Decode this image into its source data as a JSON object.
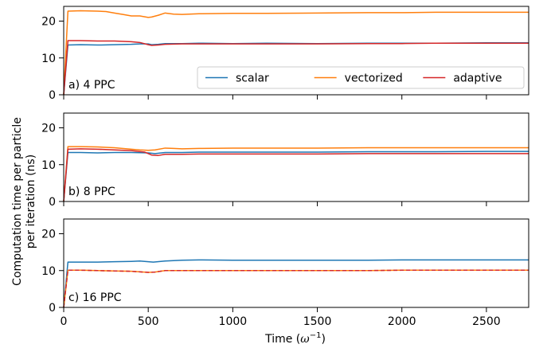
{
  "figure": {
    "ylabel_line1": "Computation time per particle",
    "ylabel_line2": "per iteration (ns)",
    "xlabel_main": "Time (",
    "xlabel_omega": "ω",
    "xlabel_exp": "−1",
    "xlabel_close": ")"
  },
  "chart_data": [
    {
      "type": "line",
      "panel_label": "a) 4 PPC",
      "xlim": [
        0,
        2750
      ],
      "ylim": [
        0,
        24
      ],
      "xticks": [
        0,
        500,
        1000,
        1500,
        2000,
        2500
      ],
      "yticks": [
        0,
        10,
        20
      ],
      "grid": false,
      "legend": {
        "placement": "lower-right",
        "columns": 3
      },
      "series": [
        {
          "name": "scalar",
          "color": "#1f77b4",
          "dashed": false,
          "x": [
            0,
            25,
            100,
            200,
            300,
            400,
            450,
            500,
            520,
            560,
            600,
            700,
            800,
            1000,
            1200,
            1500,
            1800,
            2000,
            2200,
            2500,
            2750
          ],
          "y": [
            0,
            13.5,
            13.6,
            13.5,
            13.6,
            13.7,
            13.8,
            13.8,
            13.6,
            13.7,
            13.9,
            13.9,
            14.0,
            13.9,
            14.0,
            13.9,
            14.0,
            14.0,
            14.0,
            14.1,
            14.1
          ]
        },
        {
          "name": "vectorized",
          "color": "#ff7f0e",
          "dashed": false,
          "x": [
            0,
            25,
            100,
            200,
            250,
            300,
            350,
            400,
            450,
            500,
            520,
            560,
            600,
            650,
            700,
            800,
            1000,
            1200,
            1500,
            1800,
            2000,
            2200,
            2500,
            2750
          ],
          "y": [
            0,
            22.7,
            22.8,
            22.7,
            22.6,
            22.2,
            21.8,
            21.4,
            21.4,
            21.0,
            21.1,
            21.6,
            22.2,
            21.9,
            21.8,
            22.0,
            22.1,
            22.1,
            22.2,
            22.3,
            22.3,
            22.4,
            22.4,
            22.4
          ]
        },
        {
          "name": "adaptive",
          "color": "#d62728",
          "dashed": false,
          "x": [
            0,
            25,
            100,
            200,
            300,
            400,
            450,
            500,
            520,
            560,
            600,
            700,
            800,
            1000,
            1200,
            1500,
            1800,
            2000,
            2200,
            2500,
            2750
          ],
          "y": [
            0,
            14.7,
            14.7,
            14.6,
            14.6,
            14.4,
            14.2,
            13.6,
            13.4,
            13.5,
            13.7,
            13.8,
            13.8,
            13.8,
            13.8,
            13.8,
            13.9,
            13.9,
            14.0,
            14.0,
            14.0
          ]
        }
      ]
    },
    {
      "type": "line",
      "panel_label": "b) 8 PPC",
      "xlim": [
        0,
        2750
      ],
      "ylim": [
        0,
        24
      ],
      "xticks": [
        0,
        500,
        1000,
        1500,
        2000,
        2500
      ],
      "yticks": [
        0,
        10,
        20
      ],
      "grid": false,
      "series": [
        {
          "name": "scalar",
          "color": "#1f77b4",
          "dashed": false,
          "x": [
            0,
            25,
            100,
            200,
            300,
            400,
            500,
            540,
            600,
            700,
            800,
            1000,
            1200,
            1500,
            1800,
            2000,
            2200,
            2500,
            2750
          ],
          "y": [
            0,
            13.3,
            13.3,
            13.2,
            13.3,
            13.3,
            13.2,
            13.0,
            13.3,
            13.3,
            13.4,
            13.4,
            13.4,
            13.4,
            13.5,
            13.5,
            13.5,
            13.6,
            13.6
          ]
        },
        {
          "name": "vectorized",
          "color": "#ff7f0e",
          "dashed": false,
          "x": [
            0,
            25,
            100,
            200,
            300,
            400,
            450,
            500,
            540,
            600,
            650,
            700,
            800,
            1000,
            1200,
            1500,
            1800,
            2000,
            2200,
            2500,
            2750
          ],
          "y": [
            0,
            14.9,
            14.9,
            14.8,
            14.6,
            14.2,
            14.0,
            13.9,
            14.0,
            14.5,
            14.4,
            14.3,
            14.4,
            14.5,
            14.5,
            14.5,
            14.6,
            14.6,
            14.6,
            14.6,
            14.6
          ]
        },
        {
          "name": "adaptive",
          "color": "#d62728",
          "dashed": false,
          "x": [
            0,
            25,
            100,
            200,
            300,
            400,
            480,
            520,
            560,
            600,
            700,
            800,
            1000,
            1200,
            1500,
            1800,
            2000,
            2200,
            2500,
            2750
          ],
          "y": [
            0,
            14.2,
            14.3,
            14.2,
            14.0,
            13.8,
            13.4,
            12.6,
            12.5,
            12.8,
            12.8,
            12.9,
            12.9,
            12.9,
            12.9,
            13.0,
            13.0,
            13.0,
            13.0,
            13.0
          ]
        }
      ]
    },
    {
      "type": "line",
      "panel_label": "c) 16 PPC",
      "xlim": [
        0,
        2750
      ],
      "ylim": [
        0,
        24
      ],
      "xticks": [
        0,
        500,
        1000,
        1500,
        2000,
        2500
      ],
      "yticks": [
        0,
        10,
        20
      ],
      "grid": false,
      "series": [
        {
          "name": "scalar",
          "color": "#1f77b4",
          "dashed": false,
          "x": [
            0,
            25,
            100,
            200,
            300,
            400,
            450,
            500,
            530,
            600,
            700,
            800,
            1000,
            1200,
            1500,
            1800,
            2000,
            2200,
            2500,
            2750
          ],
          "y": [
            0,
            12.3,
            12.3,
            12.3,
            12.4,
            12.5,
            12.6,
            12.4,
            12.3,
            12.6,
            12.8,
            12.9,
            12.8,
            12.8,
            12.8,
            12.8,
            12.9,
            12.9,
            12.9,
            12.9
          ]
        },
        {
          "name": "vectorized",
          "color": "#ff7f0e",
          "dashed": false,
          "x": [
            0,
            25,
            100,
            200,
            300,
            400,
            500,
            540,
            600,
            700,
            800,
            1000,
            1200,
            1500,
            1800,
            2000,
            2200,
            2500,
            2750
          ],
          "y": [
            0,
            10.1,
            10.1,
            10.0,
            9.9,
            9.8,
            9.5,
            9.6,
            10.0,
            10.0,
            10.0,
            10.0,
            10.0,
            10.0,
            10.0,
            10.1,
            10.1,
            10.1,
            10.1
          ]
        },
        {
          "name": "adaptive",
          "color": "#d62728",
          "dashed": true,
          "x": [
            0,
            25,
            100,
            200,
            300,
            400,
            500,
            540,
            600,
            700,
            800,
            1000,
            1200,
            1500,
            1800,
            2000,
            2200,
            2500,
            2750
          ],
          "y": [
            0,
            10.1,
            10.1,
            10.0,
            9.9,
            9.8,
            9.5,
            9.6,
            10.0,
            10.0,
            10.0,
            10.0,
            10.0,
            10.0,
            10.0,
            10.1,
            10.1,
            10.1,
            10.1
          ]
        }
      ]
    }
  ]
}
